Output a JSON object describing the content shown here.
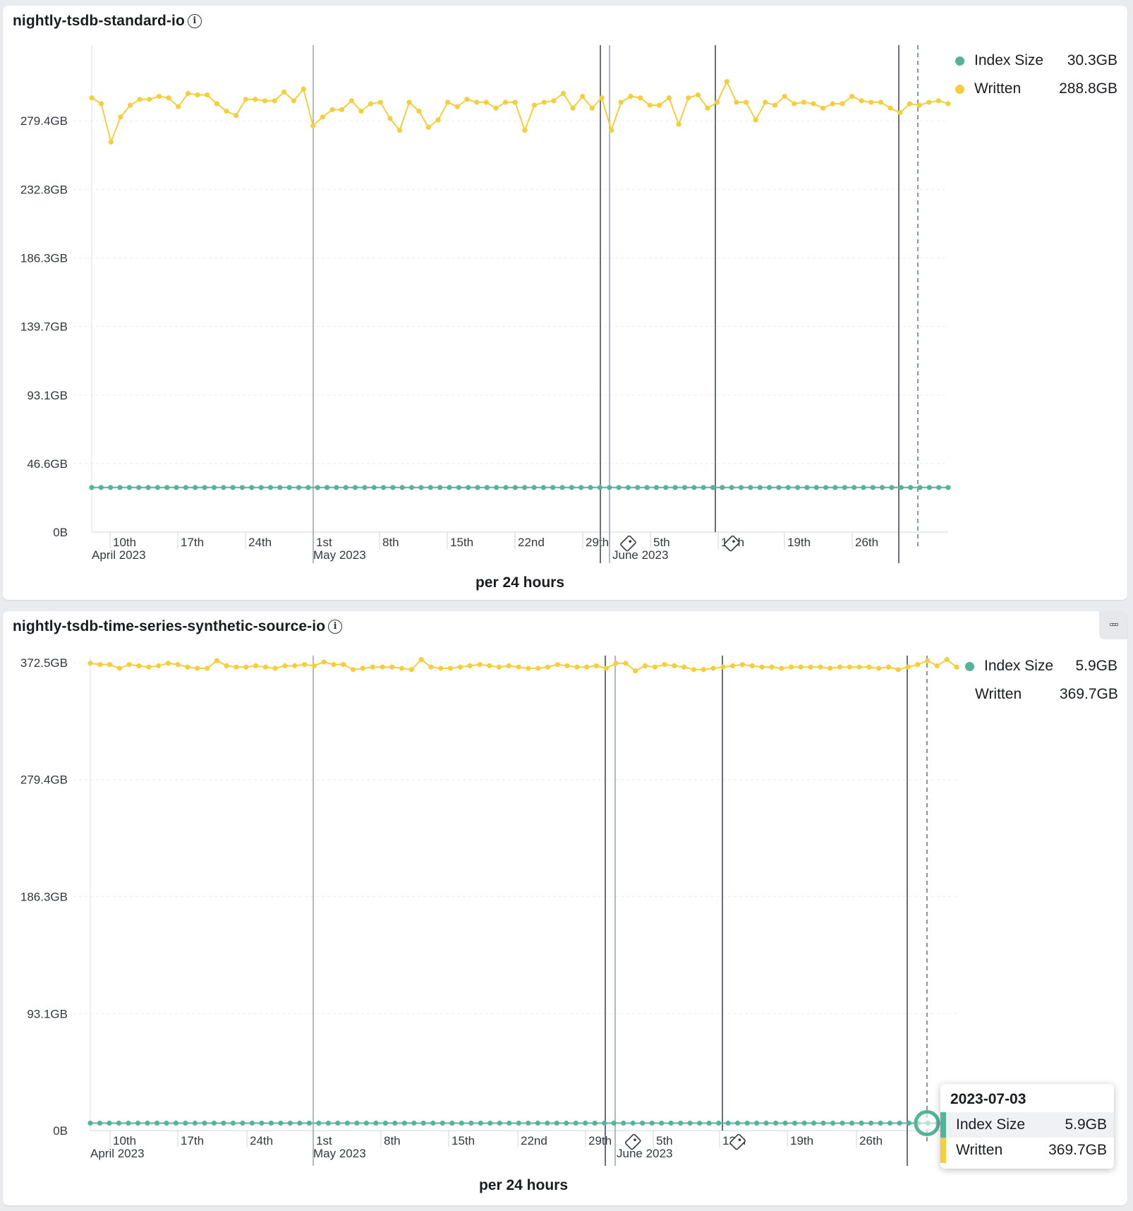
{
  "panels": [
    {
      "title": "nightly-tsdb-standard-io",
      "footer": "per 24 hours",
      "legend": [
        {
          "name": "Index Size",
          "value": "30.3GB",
          "color": "#54b399"
        },
        {
          "name": "Written",
          "value": "288.8GB",
          "color": "#f5cf3b"
        }
      ],
      "y_ticks": [
        "279.4GB",
        "232.8GB",
        "186.3GB",
        "139.7GB",
        "93.1GB",
        "46.6GB",
        "0B"
      ],
      "x_ticks": [
        "10th",
        "17th",
        "24th",
        "1st",
        "8th",
        "15th",
        "22nd",
        "29th",
        "5th",
        "12th",
        "19th",
        "26th"
      ],
      "x_month_labels": [
        "April 2023",
        "May 2023",
        "June 2023"
      ]
    },
    {
      "title": "nightly-tsdb-time-series-synthetic-source-io",
      "footer": "per 24 hours",
      "legend": [
        {
          "name": "Index Size",
          "value": "5.9GB",
          "color": "#54b399"
        },
        {
          "name": "Written",
          "value": "369.7GB",
          "color": "#f5cf3b"
        }
      ],
      "y_ticks": [
        "372.5GB",
        "279.4GB",
        "186.3GB",
        "93.1GB",
        "0B"
      ],
      "x_ticks": [
        "10th",
        "17th",
        "24th",
        "1st",
        "8th",
        "15th",
        "22nd",
        "29th",
        "5th",
        "12th",
        "19th",
        "26th"
      ],
      "x_month_labels": [
        "April 2023",
        "May 2023",
        "June 2023"
      ],
      "tooltip": {
        "date": "2023-07-03",
        "rows": [
          {
            "name": "Index Size",
            "value": "5.9GB",
            "color": "#54b399"
          },
          {
            "name": "Written",
            "value": "369.7GB",
            "color": "#f5cf3b"
          }
        ]
      }
    }
  ],
  "chart_data": [
    {
      "type": "line",
      "title": "nightly-tsdb-standard-io",
      "xlabel": "per 24 hours",
      "x_range": [
        "2023-04-04",
        "2023-07-04"
      ],
      "y_unit": "GB",
      "ylim": [
        0,
        326
      ],
      "y_ticks": [
        0,
        46.6,
        93.1,
        139.7,
        186.3,
        232.8,
        279.4
      ],
      "grid": true,
      "legend_position": "top-right",
      "series": [
        {
          "name": "Index Size",
          "color": "#54b399",
          "constant": true,
          "values": [
            30.3
          ]
        },
        {
          "name": "Written",
          "color": "#f5cf3b",
          "values": [
            295,
            291,
            265,
            282,
            290,
            294,
            294,
            296,
            295,
            289,
            298,
            297,
            297,
            291,
            286,
            283,
            294,
            294,
            293,
            293,
            299,
            293,
            301,
            276,
            282,
            287,
            287,
            293,
            286,
            291,
            292,
            281,
            273,
            292,
            286,
            275,
            280,
            292,
            289,
            294,
            292,
            292,
            288,
            292,
            292,
            273,
            290,
            292,
            293,
            298,
            288,
            296,
            288,
            295,
            273,
            292,
            296,
            295,
            290,
            290,
            295,
            277,
            295,
            297,
            288,
            292,
            306,
            292,
            292,
            280,
            292,
            290,
            296,
            291,
            292,
            291,
            288,
            291,
            291,
            296,
            293,
            292,
            292,
            288,
            285,
            291,
            290,
            292,
            293,
            291
          ]
        }
      ],
      "annotations": [
        "2023-05-31",
        "2023-06-11"
      ]
    },
    {
      "type": "line",
      "title": "nightly-tsdb-time-series-synthetic-source-io",
      "xlabel": "per 24 hours",
      "x_range": [
        "2023-04-04",
        "2023-07-04"
      ],
      "y_unit": "GB",
      "ylim": [
        0,
        372.5
      ],
      "y_ticks": [
        0,
        93.1,
        186.3,
        279.4,
        372.5
      ],
      "grid": true,
      "legend_position": "top-right",
      "series": [
        {
          "name": "Index Size",
          "color": "#54b399",
          "constant": true,
          "values": [
            5.9
          ]
        },
        {
          "name": "Written",
          "color": "#f5cf3b",
          "values": [
            372,
            371,
            371,
            368,
            371,
            370,
            369,
            370,
            372,
            371,
            369,
            368,
            368,
            374,
            370,
            369,
            369,
            370,
            369,
            368,
            370,
            370,
            371,
            370,
            373,
            371,
            371,
            367,
            368,
            369,
            369,
            369,
            368,
            367,
            375,
            369,
            368,
            368,
            369,
            370,
            371,
            370,
            369,
            370,
            369,
            368,
            368,
            369,
            371,
            370,
            369,
            369,
            370,
            368,
            372,
            372,
            366,
            370,
            369,
            371,
            370,
            369,
            367,
            367,
            368,
            369,
            370,
            371,
            370,
            369,
            369,
            368,
            369,
            369,
            369,
            369,
            368,
            369,
            369,
            369,
            369,
            368,
            369,
            367,
            369,
            371,
            374,
            370,
            375,
            369
          ]
        }
      ],
      "annotations": [
        "2023-05-31",
        "2023-06-11"
      ]
    }
  ]
}
